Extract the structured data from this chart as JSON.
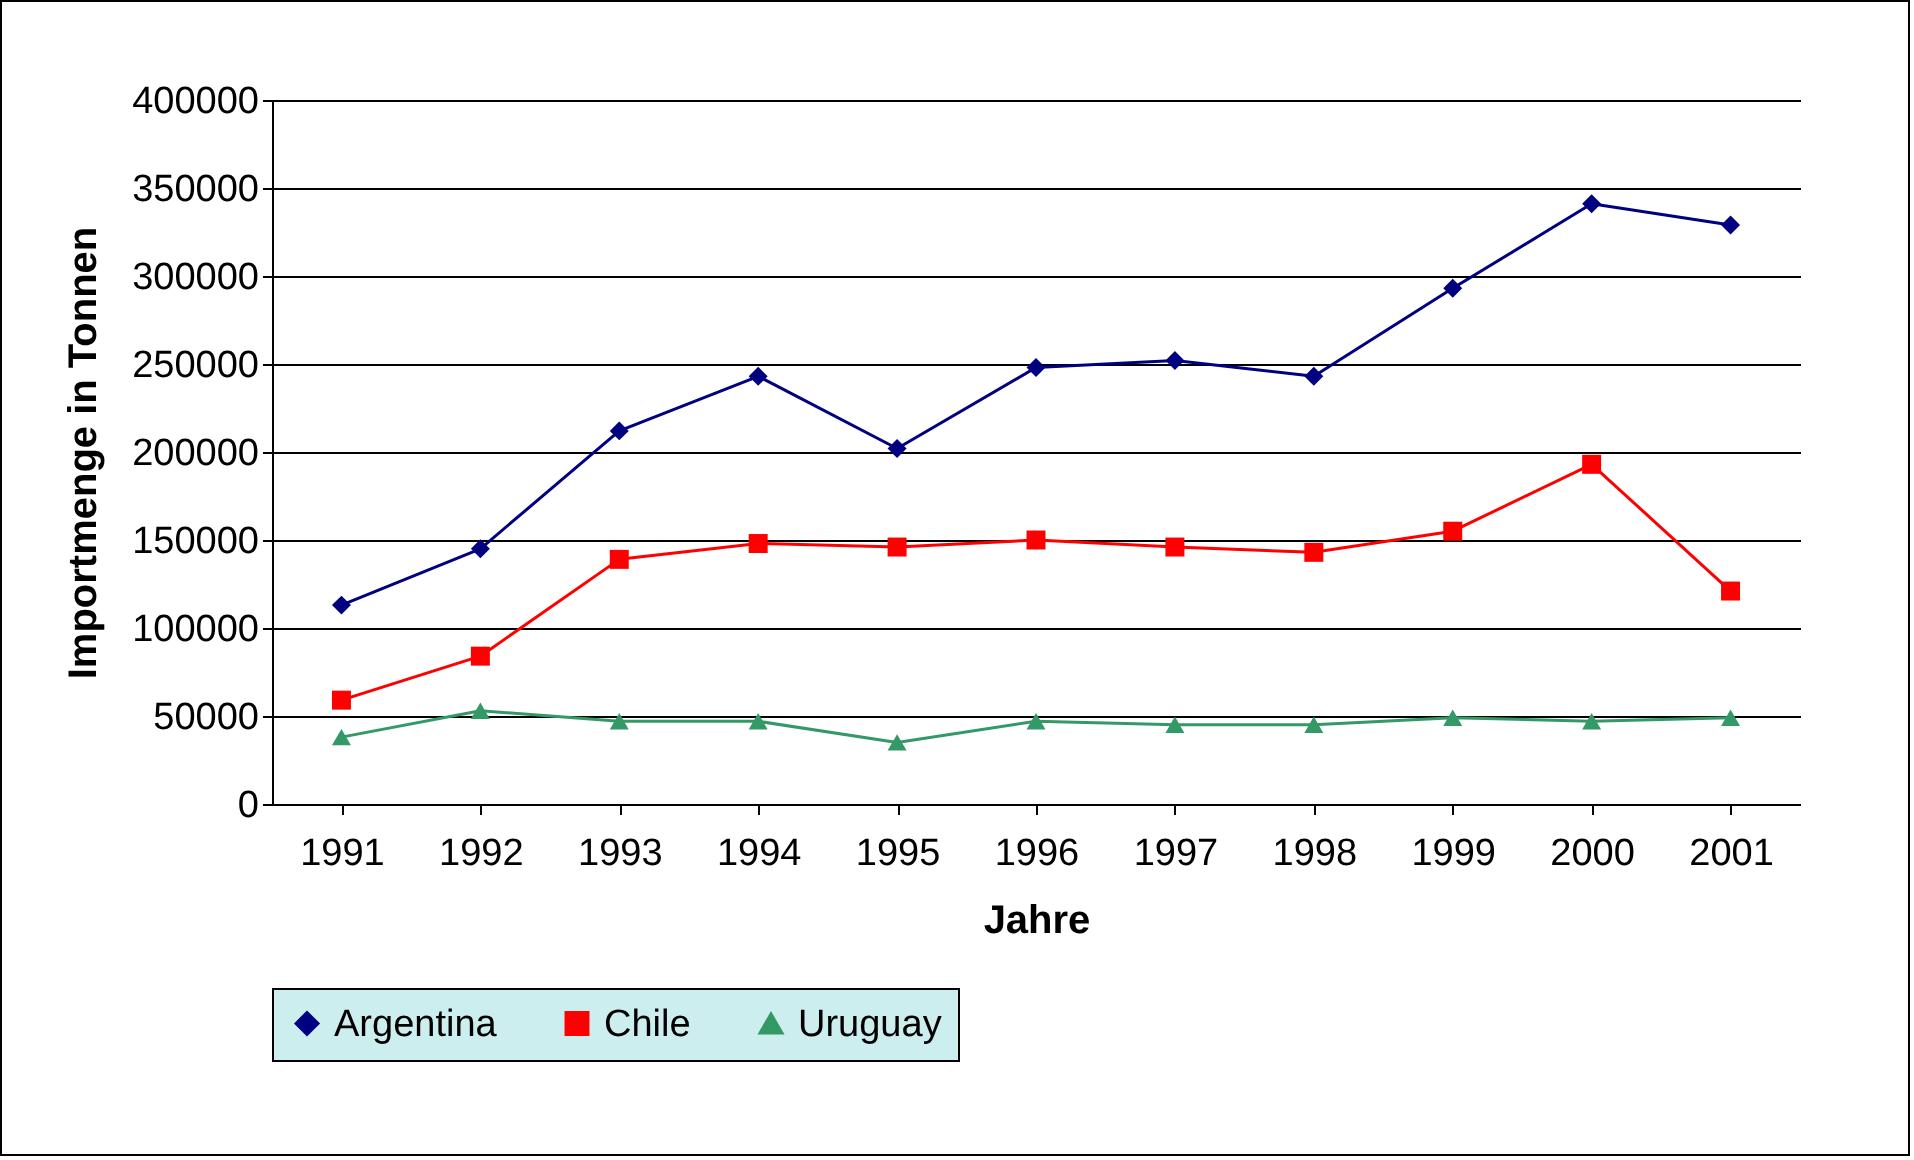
{
  "chart_data": {
    "type": "line",
    "xlabel": "Jahre",
    "ylabel": "Importmenge in Tonnen",
    "categories": [
      "1991",
      "1992",
      "1993",
      "1994",
      "1995",
      "1996",
      "1997",
      "1998",
      "1999",
      "2000",
      "2001"
    ],
    "series": [
      {
        "name": "Argentina",
        "color": "#000080",
        "marker": "diamond",
        "values": [
          113000,
          145000,
          212000,
          243000,
          202000,
          248000,
          252000,
          243000,
          293000,
          341000,
          329000
        ]
      },
      {
        "name": "Chile",
        "color": "#ff0000",
        "marker": "square",
        "values": [
          59000,
          84000,
          139000,
          148000,
          146000,
          150000,
          146000,
          143000,
          155000,
          193000,
          121000
        ]
      },
      {
        "name": "Uruguay",
        "color": "#339966",
        "marker": "triangle",
        "values": [
          38000,
          53000,
          47000,
          47000,
          35000,
          47000,
          45000,
          45000,
          49000,
          47000,
          49000
        ]
      }
    ],
    "ylim": [
      0,
      400000
    ],
    "yticks": [
      0,
      50000,
      100000,
      150000,
      200000,
      250000,
      300000,
      350000,
      400000
    ],
    "grid": "y",
    "legend": "bottom",
    "line_style": "solid"
  }
}
